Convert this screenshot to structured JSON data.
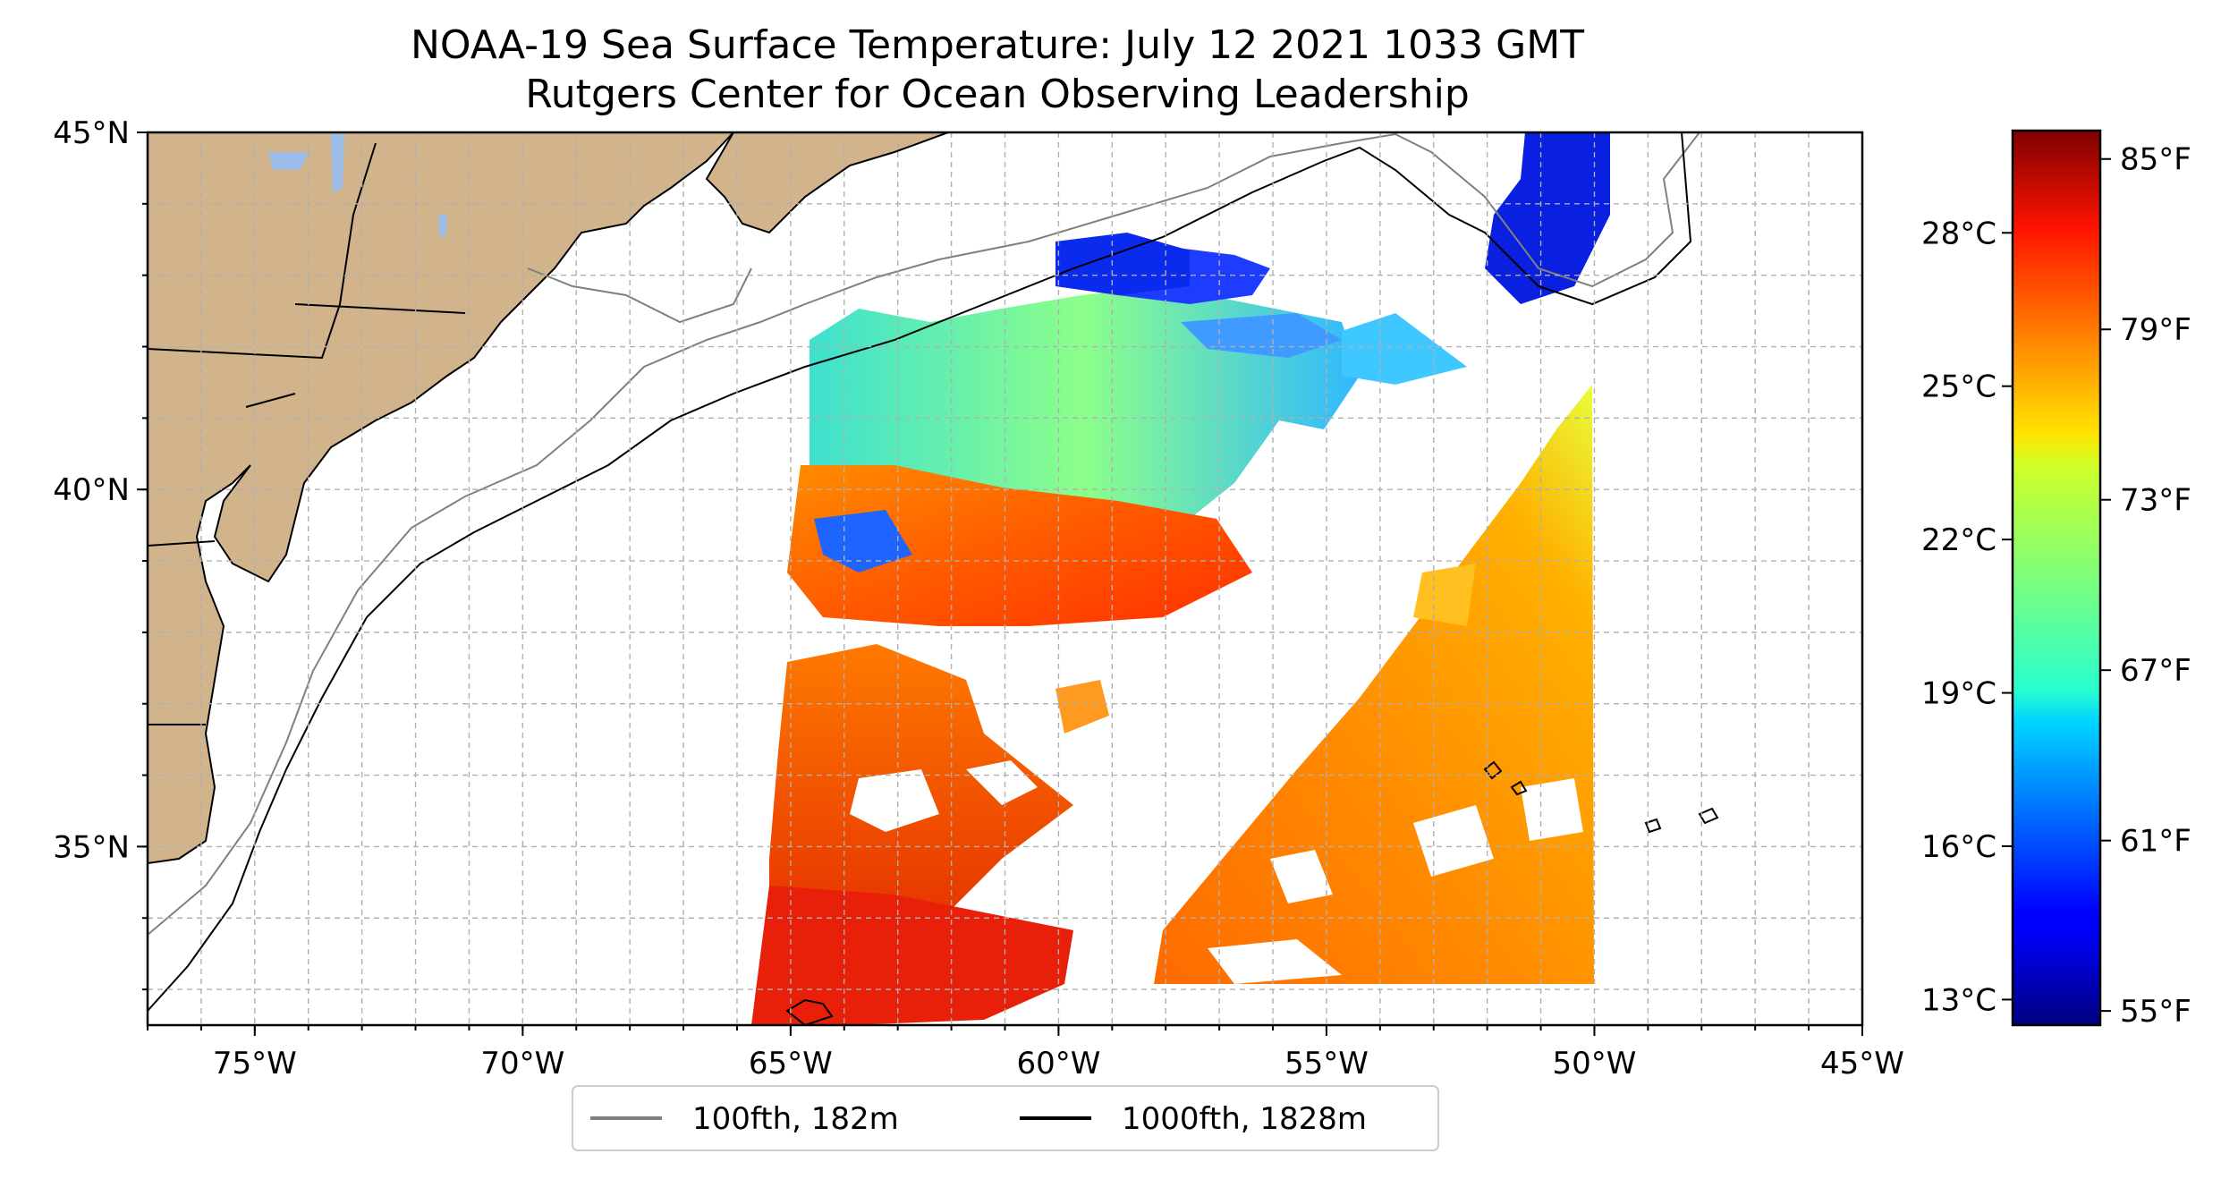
{
  "title": "NOAA-19 Sea Surface Temperature: July 12 2021 1033 GMT",
  "subtitle": "Rutgers Center for Ocean Observing Leadership",
  "map": {
    "lon_range": [
      -77,
      -45
    ],
    "lat_range": [
      32.5,
      45
    ],
    "lon_ticks": [
      {
        "value": -75,
        "label": "75°W"
      },
      {
        "value": -70,
        "label": "70°W"
      },
      {
        "value": -65,
        "label": "65°W"
      },
      {
        "value": -60,
        "label": "60°W"
      },
      {
        "value": -55,
        "label": "55°W"
      },
      {
        "value": -50,
        "label": "50°W"
      },
      {
        "value": -45,
        "label": "45°W"
      }
    ],
    "lat_ticks": [
      {
        "value": 45,
        "label": "45°N"
      },
      {
        "value": 40,
        "label": "40°N"
      },
      {
        "value": 35,
        "label": "35°N"
      }
    ],
    "grid_step_degrees": 1,
    "colors": {
      "land": "#d2b48c",
      "lakes": "#9bbde8",
      "grid": "#b0b0b0",
      "isobath_100": "#808080",
      "isobath_1000": "#000000"
    }
  },
  "colorbar": {
    "colormap": "jet",
    "range_c": [
      12.5,
      30.0
    ],
    "celsius_ticks": [
      {
        "value": 13,
        "label": "13°C"
      },
      {
        "value": 16,
        "label": "16°C"
      },
      {
        "value": 19,
        "label": "19°C"
      },
      {
        "value": 22,
        "label": "22°C"
      },
      {
        "value": 25,
        "label": "25°C"
      },
      {
        "value": 28,
        "label": "28°C"
      }
    ],
    "fahrenheit_ticks": [
      {
        "value": 55,
        "label": "55°F"
      },
      {
        "value": 61,
        "label": "61°F"
      },
      {
        "value": 67,
        "label": "67°F"
      },
      {
        "value": 73,
        "label": "73°F"
      },
      {
        "value": 79,
        "label": "79°F"
      },
      {
        "value": 85,
        "label": "85°F"
      }
    ]
  },
  "legend": {
    "items": [
      {
        "label": "100fth, 182m",
        "color": "#808080"
      },
      {
        "label": "1000fth, 1828m",
        "color": "#000000"
      }
    ]
  }
}
